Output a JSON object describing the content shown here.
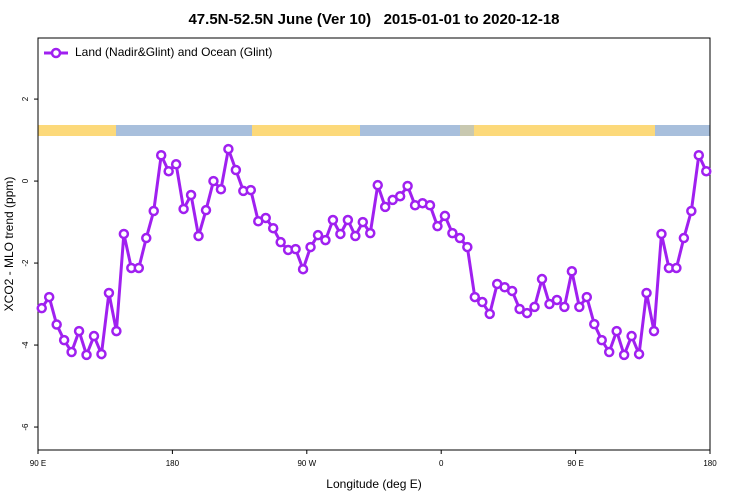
{
  "chart_data": {
    "type": "line",
    "title": "47.5N-52.5N June (Ver 10)   2015-01-01 to 2020-12-18",
    "x_label": "Longitude (deg E)",
    "y_label": "XCO2 - MLO trend (ppm)",
    "xlim": [
      90,
      540
    ],
    "xticks": [
      {
        "value": 90,
        "label": "90 E"
      },
      {
        "value": 180,
        "label": "180"
      },
      {
        "value": 270,
        "label": "90 W"
      },
      {
        "value": 360,
        "label": "0"
      },
      {
        "value": 450,
        "label": "90 E"
      },
      {
        "value": 540,
        "label": "180"
      }
    ],
    "ylim": [
      -6.56,
      3.49
    ],
    "yticks": [
      -6,
      -4,
      -2,
      0,
      2
    ],
    "legend": "upper left",
    "x": [
      92.5,
      97.5,
      102.5,
      107.5,
      112.5,
      117.5,
      122.5,
      127.5,
      132.5,
      137.5,
      142.5,
      147.5,
      152.5,
      157.5,
      162.5,
      167.5,
      172.5,
      177.5,
      182.5,
      187.5,
      192.5,
      197.5,
      202.5,
      207.5,
      212.5,
      217.5,
      222.5,
      227.5,
      232.5,
      237.5,
      242.5,
      247.5,
      252.5,
      257.5,
      262.5,
      267.5,
      272.5,
      277.5,
      282.5,
      287.5,
      292.5,
      297.5,
      302.5,
      307.5,
      312.5,
      317.5,
      322.5,
      327.5,
      332.5,
      337.5,
      342.5,
      347.5,
      352.5,
      357.5,
      362.5,
      367.5,
      372.5,
      377.5,
      382.5,
      387.5,
      392.5,
      397.5,
      402.5,
      407.5,
      412.5,
      417.5,
      422.5,
      427.5,
      432.5,
      437.5,
      442.5,
      447.5,
      452.5,
      457.5,
      462.5,
      467.5,
      472.5,
      477.5,
      482.5,
      487.5,
      492.5,
      497.5,
      502.5,
      507.5,
      512.5,
      517.5,
      522.5,
      527.5,
      532.5,
      537.5
    ],
    "series": [
      {
        "name": "Land (Nadir&Glint) and Ocean (Glint)",
        "color": "#a020f0",
        "values": [
          -3.1,
          -2.83,
          -3.5,
          -3.88,
          -4.17,
          -3.66,
          -4.24,
          -3.78,
          -4.22,
          -2.73,
          -3.66,
          -1.29,
          -2.12,
          -2.12,
          -1.39,
          -0.73,
          0.63,
          0.24,
          0.41,
          -0.68,
          -0.34,
          -1.34,
          -0.71,
          0,
          -0.2,
          0.78,
          0.27,
          -0.24,
          -0.22,
          -0.98,
          -0.9,
          -1.15,
          -1.49,
          -1.68,
          -1.66,
          -2.15,
          -1.61,
          -1.32,
          -1.44,
          -0.95,
          -1.29,
          -0.95,
          -1.34,
          -1.0,
          -1.27,
          -0.1,
          -0.63,
          -0.46,
          -0.37,
          -0.12,
          -0.59,
          -0.54,
          -0.59,
          -1.1,
          -0.85,
          -1.27,
          -1.39,
          -1.61,
          -2.83,
          -2.95,
          -3.24,
          -2.51,
          -2.59,
          -2.68,
          -3.12,
          -3.22,
          -3.07,
          -2.39,
          -3.0,
          -2.9,
          -3.07,
          -2.2,
          -3.07,
          -2.83,
          -3.49,
          -3.88,
          -4.17,
          -3.66,
          -4.24,
          -3.78,
          -4.22,
          -2.73,
          -3.66,
          -1.29,
          -2.12,
          -2.12,
          -1.39,
          -0.73,
          0.63,
          0.24
        ]
      }
    ]
  }
}
